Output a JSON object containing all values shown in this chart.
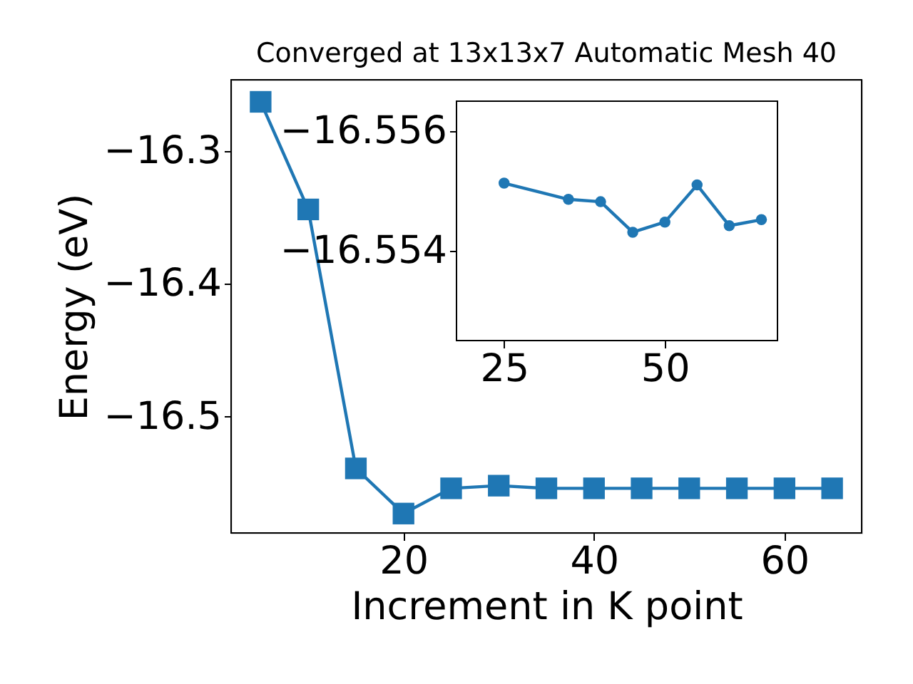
{
  "chart_data": [
    {
      "type": "line",
      "title": "Converged at 13x13x7 Automatic Mesh 40",
      "xlabel": "Increment in K point",
      "ylabel": "Energy (eV)",
      "marker": "square",
      "grid": false,
      "x": [
        5,
        10,
        15,
        20,
        25,
        30,
        35,
        40,
        45,
        50,
        55,
        60,
        65
      ],
      "series": [
        {
          "color": "#1f77b4",
          "values": [
            -16.263,
            -16.344,
            -16.539,
            -16.573,
            -16.554,
            -16.552,
            -16.554,
            -16.554,
            -16.554,
            -16.554,
            -16.554,
            -16.554,
            -16.554
          ]
        }
      ],
      "xlim": [
        1.9,
        68.1
      ],
      "xticks": [
        20,
        40,
        60
      ],
      "ylim": [
        -16.5876,
        -16.2464
      ],
      "yticks": [
        {
          "value": -16.5,
          "label": "−16.5"
        },
        {
          "value": -16.4,
          "label": "−16.4"
        },
        {
          "value": -16.3,
          "label": "−16.3"
        }
      ]
    },
    {
      "type": "line",
      "marker": "circle",
      "grid": false,
      "x": [
        25,
        35,
        40,
        45,
        50,
        55,
        60,
        65
      ],
      "series": [
        {
          "color": "#1f77b4",
          "values": [
            -16.55513,
            -16.55486,
            -16.55482,
            -16.55431,
            -16.55448,
            -16.5551,
            -16.55442,
            -16.55452
          ]
        }
      ],
      "xlim": [
        17.6,
        67.5
      ],
      "xticks": [
        25,
        50
      ],
      "ylim": [
        -16.5525,
        -16.5565
      ],
      "yticks": [
        {
          "value": -16.556,
          "label": "−16.556"
        },
        {
          "value": -16.554,
          "label": "−16.554"
        }
      ]
    }
  ]
}
